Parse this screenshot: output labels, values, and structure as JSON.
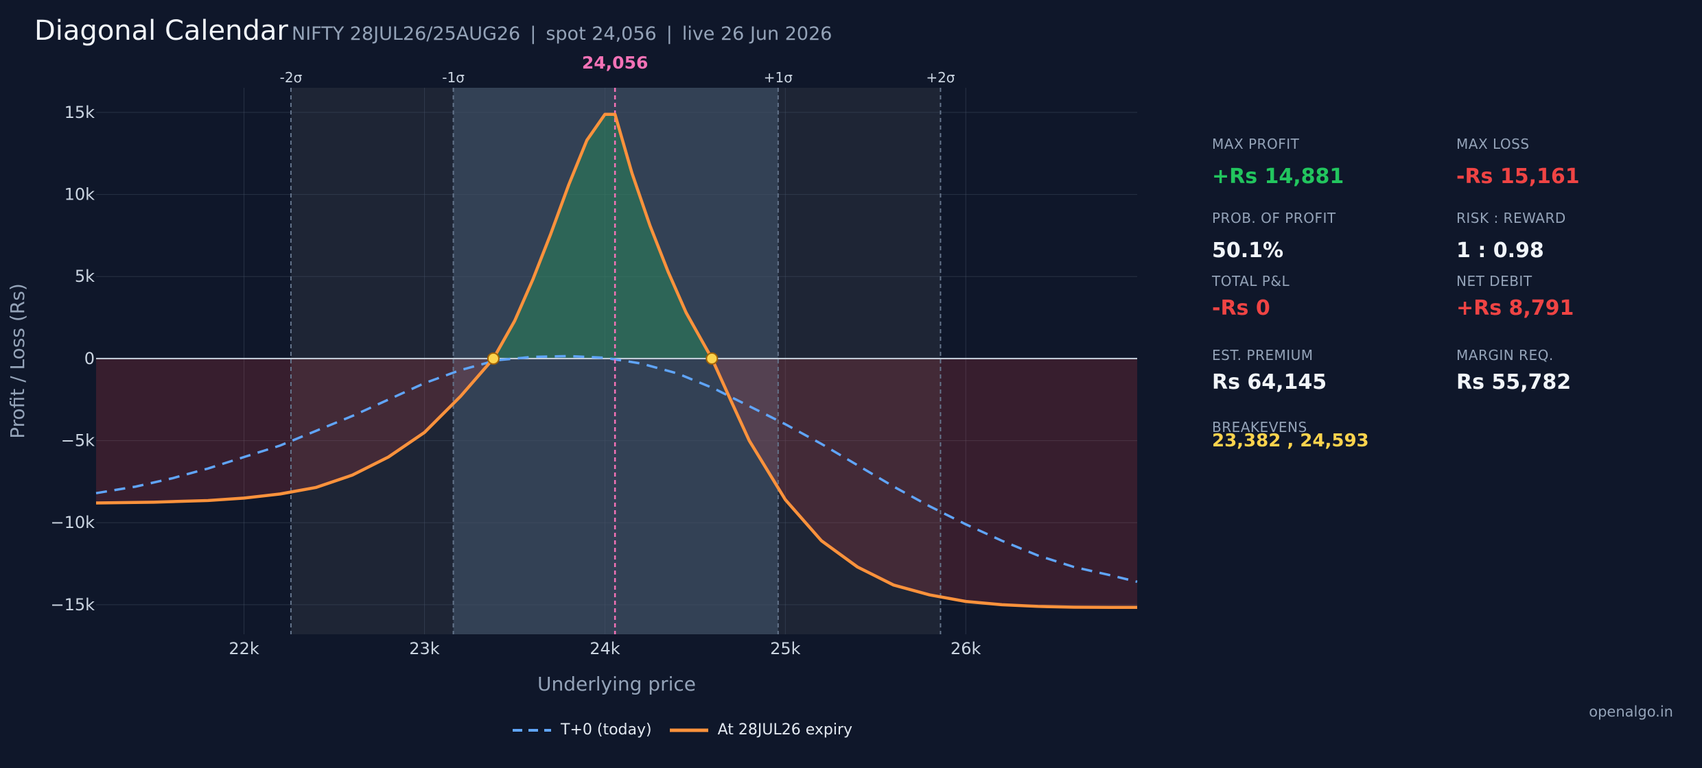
{
  "header": {
    "title": "Diagonal Calendar",
    "instrument": "NIFTY 28JUL26/25AUG26",
    "spot": "spot 24,056",
    "live": "live 26 Jun 2026",
    "separator": "|"
  },
  "metrics": {
    "max_profit_label": "MAX PROFIT",
    "max_profit_value": "+Rs 14,881",
    "max_loss_label": "MAX LOSS",
    "max_loss_value": "-Rs 15,161",
    "pop_label": "PROB. OF PROFIT",
    "pop_value": "50.1%",
    "rr_label": "RISK : REWARD",
    "rr_value": "1 : 0.98",
    "total_pnl_label": "TOTAL P&L",
    "total_pnl_value": "-Rs 0",
    "net_debit_label": "NET DEBIT",
    "net_debit_value": "+Rs 8,791",
    "premium_label": "EST. PREMIUM",
    "premium_value": "Rs 64,145",
    "margin_label": "MARGIN REQ.",
    "margin_value": "Rs 55,782",
    "breakevens_label": "BREAKEVENS",
    "breakevens_value": "23,382 , 24,593"
  },
  "colors": {
    "background": "#0f172a",
    "profit": "#22c55e",
    "loss": "#ef4444",
    "expiry_line": "#fb923c",
    "t0_line": "#60a5fa",
    "spot_line": "#f472b6",
    "breakeven": "#fcd34d"
  },
  "watermark": "openalgo.in",
  "chart_data": {
    "type": "line",
    "xlabel": "Underlying price",
    "ylabel": "Profit / Loss (Rs)",
    "xlim": [
      21180,
      26950
    ],
    "ylim": [
      -16800,
      16500
    ],
    "x_ticks": [
      22000,
      23000,
      24000,
      25000,
      26000
    ],
    "x_tick_labels": [
      "22k",
      "23k",
      "24k",
      "25k",
      "26k"
    ],
    "y_ticks": [
      15000,
      10000,
      5000,
      0,
      -5000,
      -10000,
      -15000
    ],
    "y_tick_labels": [
      "15k",
      "10k",
      "5k",
      "0",
      "−5k",
      "−10k",
      "−15k"
    ],
    "spot": 24056,
    "spot_label": "24,056",
    "sigma_bands": [
      {
        "label": "-2σ",
        "x": 22260
      },
      {
        "label": "-1σ",
        "x": 23160
      },
      {
        "label": "+1σ",
        "x": 24960
      },
      {
        "label": "+2σ",
        "x": 25860
      }
    ],
    "breakevens": [
      23382,
      24593
    ],
    "grid": true,
    "legend_position": "bottom-center",
    "series": [
      {
        "name": "T+0 (today)",
        "style": "dashed",
        "x": [
          21180,
          21400,
          21600,
          21800,
          22000,
          22200,
          22400,
          22600,
          22800,
          23000,
          23200,
          23400,
          23600,
          23800,
          24000,
          24200,
          24400,
          24600,
          24800,
          25000,
          25200,
          25400,
          25600,
          25800,
          26000,
          26200,
          26400,
          26600,
          26800,
          26950
        ],
        "y": [
          -8200,
          -7800,
          -7300,
          -6700,
          -6000,
          -5300,
          -4400,
          -3500,
          -2500,
          -1500,
          -700,
          -100,
          100,
          150,
          50,
          -300,
          -900,
          -1800,
          -2900,
          -4000,
          -5200,
          -6500,
          -7800,
          -9000,
          -10100,
          -11100,
          -12000,
          -12700,
          -13200,
          -13600
        ]
      },
      {
        "name": "At 28JUL26 expiry",
        "style": "solid",
        "x": [
          21180,
          21500,
          21800,
          22000,
          22200,
          22400,
          22600,
          22800,
          23000,
          23200,
          23382,
          23500,
          23600,
          23700,
          23800,
          23900,
          24000,
          24056,
          24150,
          24250,
          24350,
          24450,
          24593,
          24700,
          24800,
          25000,
          25200,
          25400,
          25600,
          25800,
          26000,
          26200,
          26400,
          26600,
          26800,
          26950
        ],
        "y": [
          -8800,
          -8750,
          -8650,
          -8500,
          -8250,
          -7850,
          -7100,
          -6000,
          -4500,
          -2300,
          0,
          2300,
          4800,
          7600,
          10600,
          13300,
          14881,
          14881,
          11300,
          8100,
          5300,
          2800,
          0,
          -2600,
          -5000,
          -8600,
          -11100,
          -12700,
          -13800,
          -14400,
          -14800,
          -15000,
          -15100,
          -15150,
          -15161,
          -15161
        ]
      }
    ]
  }
}
